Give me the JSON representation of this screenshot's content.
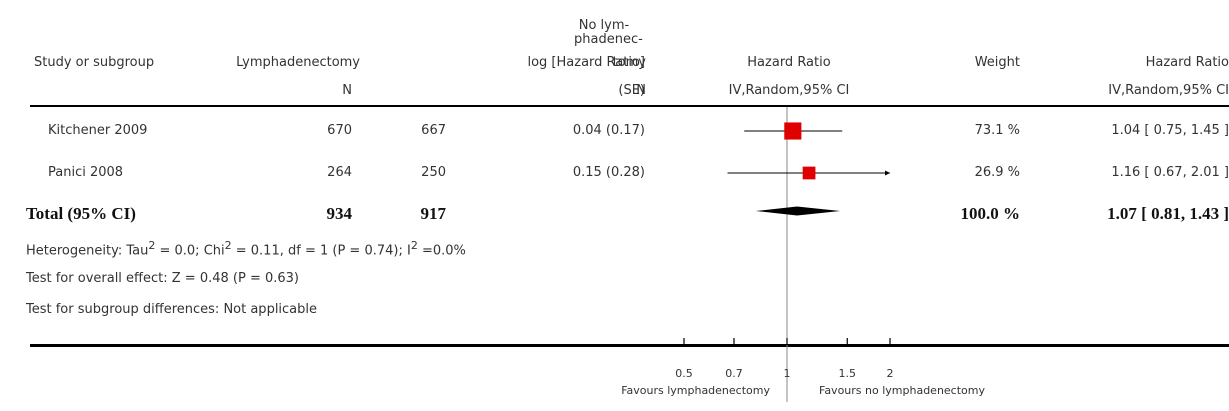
{
  "header": {
    "study": "Study or subgroup",
    "lymph": "Lymphadenectomy",
    "lymph_n": "N",
    "nolymph_l1": "No lym-",
    "nolymph_l2": "phadenec-",
    "nolymph_l3": "tomy",
    "nolymph_n": "N",
    "loghr": "log [Hazard Ratio]",
    "loghr_se": "(SE)",
    "hr": "Hazard Ratio",
    "hr_method": "IV,Random,95% CI",
    "weight": "Weight",
    "hr2": "Hazard Ratio",
    "hr2_method": "IV,Random,95% CI"
  },
  "rows": [
    {
      "study": "Kitchener 2009",
      "n1": "670",
      "n2": "667",
      "loghr": "0.04 (0.17)",
      "weight": "73.1 %",
      "ci": "1.04 [ 0.75, 1.45 ]"
    },
    {
      "study": "Panici 2008",
      "n1": "264",
      "n2": "250",
      "loghr": "0.15 (0.28)",
      "weight": "26.9 %",
      "ci": "1.16 [ 0.67, 2.01 ]"
    }
  ],
  "total": {
    "label": "Total (95% CI)",
    "n1": "934",
    "n2": "917",
    "weight": "100.0 %",
    "ci": "1.07 [ 0.81, 1.43 ]"
  },
  "footer": {
    "heterogeneity_a": "Heterogeneity: Tau",
    "heterogeneity_b": " = 0.0; Chi",
    "heterogeneity_c": " = 0.11, df = 1 (P = 0.74); I",
    "heterogeneity_d": " =0.0%",
    "sup": "2",
    "overall": "Test for overall effect: Z = 0.48 (P = 0.63)",
    "subgroup": "Test for subgroup differences: Not applicable"
  },
  "axis": {
    "ticks": [
      "0.5",
      "0.7",
      "1",
      "1.5",
      "2"
    ],
    "favours_left": "Favours lymphadenectomy",
    "favours_right": "Favours no lymphadenectomy"
  },
  "colors": {
    "box": "#e00000",
    "line": "#000000",
    "text": "#333333"
  },
  "chart_data": {
    "type": "scatter",
    "scale": "log",
    "xlim": [
      0.5,
      2
    ],
    "xticks": [
      0.5,
      0.7,
      1,
      1.5,
      2
    ],
    "studies": [
      {
        "name": "Kitchener 2009",
        "hr": 1.04,
        "lower": 0.75,
        "upper": 1.45,
        "weight": 73.1
      },
      {
        "name": "Panici 2008",
        "hr": 1.16,
        "lower": 0.67,
        "upper": 2.01,
        "weight": 26.9
      }
    ],
    "total": {
      "hr": 1.07,
      "lower": 0.81,
      "upper": 1.43
    }
  }
}
